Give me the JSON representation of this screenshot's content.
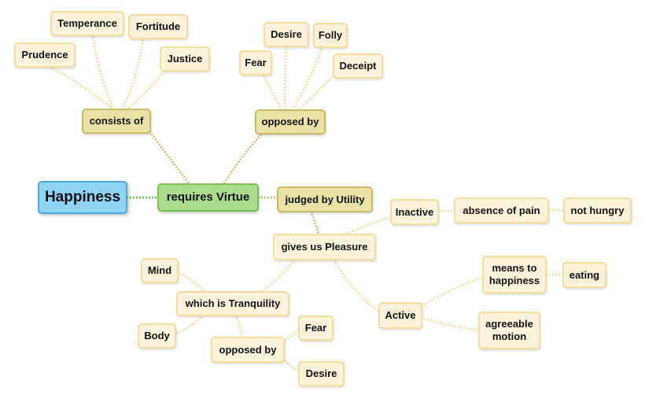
{
  "nodes": {
    "happiness": "Happiness",
    "requires_virtue": "requires Virtue",
    "consists_of": "consists of",
    "opposed_by_top": "opposed by",
    "judged_by_utility": "judged by Utility",
    "prudence": "Prudence",
    "temperance": "Temperance",
    "fortitude": "Fortitude",
    "justice": "Justice",
    "fear_top": "Fear",
    "desire_top": "Desire",
    "folly": "Folly",
    "deceipt": "Deceipt",
    "gives_us_pleasure": "gives us Pleasure",
    "inactive": "Inactive",
    "absence_of_pain": "absence of pain",
    "not_hungry": "not hungry",
    "active": "Active",
    "means_to_happiness": "means to\nhappiness",
    "eating": "eating",
    "agreeable_motion": "agreeable\nmotion",
    "which_is_tranquility": "which is Tranquility",
    "mind": "Mind",
    "body": "Body",
    "opposed_by_bottom": "opposed by",
    "fear_bottom": "Fear",
    "desire_bottom": "Desire"
  },
  "colors": {
    "root_fill": "#8fd3f2",
    "green_fill": "#a9dd8d",
    "mid_fill": "#e9e2a6",
    "leaf_fill": "#fdf3dc",
    "link_green": "#7cc35a",
    "link_olive": "#cfc27a",
    "link_leaf": "#f3dfa8"
  }
}
